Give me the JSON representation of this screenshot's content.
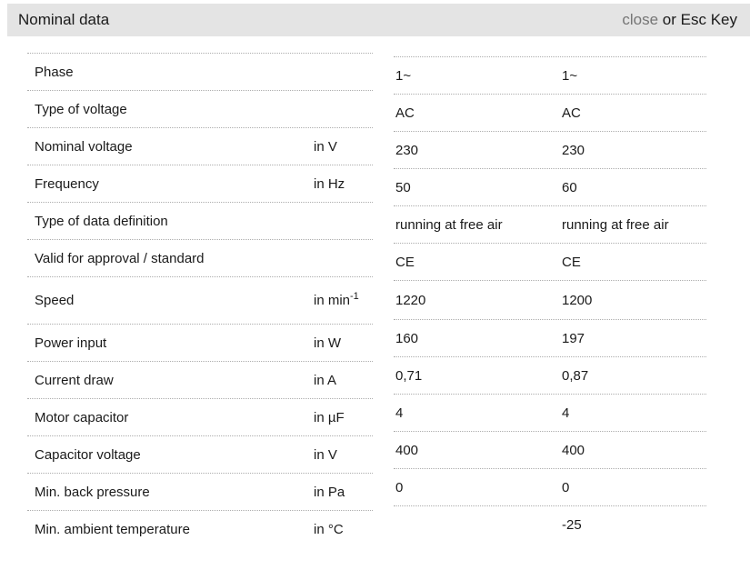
{
  "header": {
    "title": "Nominal data",
    "close_label": "close",
    "close_suffix": " or Esc Key"
  },
  "table": {
    "rows": [
      {
        "label": "Phase",
        "unit": "",
        "values": [
          "1~",
          "1~"
        ]
      },
      {
        "label": "Type of voltage",
        "unit": "",
        "values": [
          "AC",
          "AC"
        ]
      },
      {
        "label": "Nominal voltage",
        "unit": "in V",
        "values": [
          "230",
          "230"
        ]
      },
      {
        "label": "Frequency",
        "unit": "in Hz",
        "values": [
          "50",
          "60"
        ]
      },
      {
        "label": "Type of data definition",
        "unit": "",
        "values": [
          "running at free air",
          "running at free air"
        ]
      },
      {
        "label": "Valid for approval / standard",
        "unit": "",
        "values": [
          "CE",
          "CE"
        ]
      },
      {
        "label": "Speed",
        "unit": "in min",
        "unit_sup": "-1",
        "values": [
          "1220",
          "1200"
        ]
      },
      {
        "label": "Power input",
        "unit": "in W",
        "values": [
          "160",
          "197"
        ]
      },
      {
        "label": "Current draw",
        "unit": "in A",
        "values": [
          "0,71",
          "0,87"
        ]
      },
      {
        "label": "Motor capacitor",
        "unit": "in µF",
        "values": [
          "4",
          "4"
        ]
      },
      {
        "label": "Capacitor voltage",
        "unit": "in V",
        "values": [
          "400",
          "400"
        ]
      },
      {
        "label": "Min. back pressure",
        "unit": "in Pa",
        "values": [
          "0",
          "0"
        ]
      },
      {
        "label": "Min. ambient temperature",
        "unit": "in °C",
        "values": [
          "",
          "-25"
        ]
      }
    ]
  },
  "colors": {
    "header_bg": "#e4e4e4",
    "text": "#1a1a1a",
    "close_link": "#757575",
    "divider": "#adadad",
    "background": "#ffffff"
  }
}
